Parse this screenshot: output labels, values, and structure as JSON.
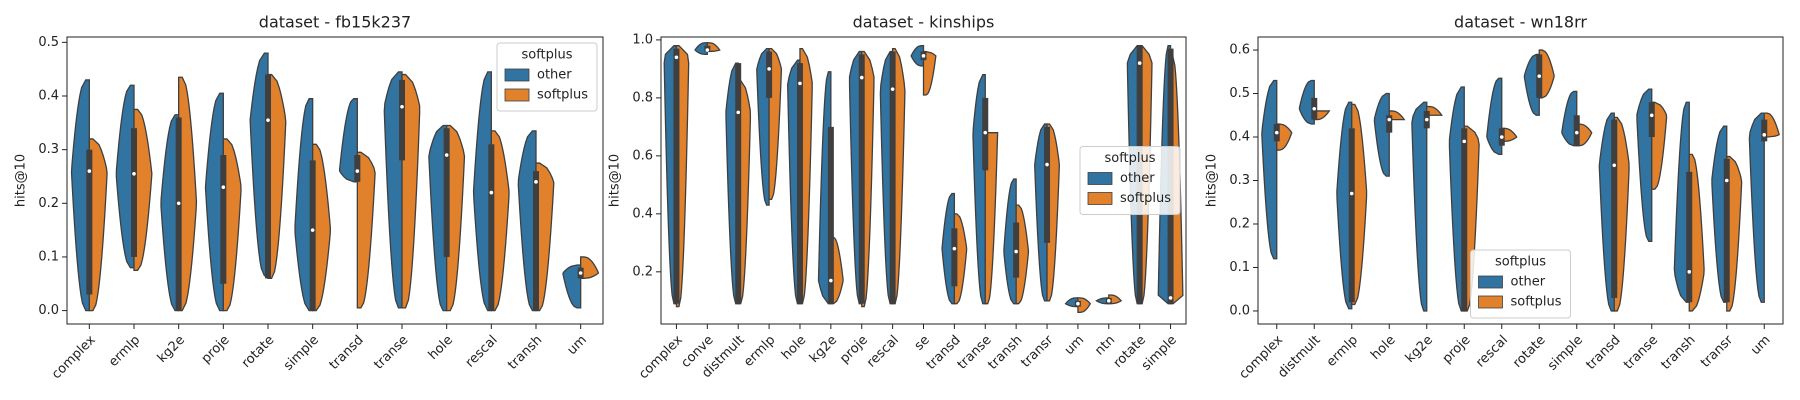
{
  "chart_data": [
    {
      "type": "violin",
      "title": "dataset - fb15k237",
      "ylabel": "hits@10",
      "categories": [
        "complex",
        "ermlp",
        "kg2e",
        "proje",
        "rotate",
        "simple",
        "transd",
        "transe",
        "hole",
        "rescal",
        "transh",
        "um"
      ],
      "series": [
        {
          "name": "other",
          "color": "#3274a1",
          "min": [
            0,
            0.08,
            0,
            0,
            0.065,
            0,
            0.24,
            0.005,
            0,
            0,
            0,
            0.005
          ],
          "max": [
            0.43,
            0.42,
            0.365,
            0.405,
            0.48,
            0.395,
            0.395,
            0.445,
            0.345,
            0.445,
            0.335,
            0.085
          ]
        },
        {
          "name": "softplus",
          "color": "#e1812c",
          "min": [
            0,
            0.075,
            0,
            0,
            0.06,
            0,
            0.005,
            0.005,
            0,
            0,
            0,
            0.06
          ],
          "max": [
            0.32,
            0.375,
            0.435,
            0.32,
            0.44,
            0.31,
            0.295,
            0.44,
            0.345,
            0.335,
            0.275,
            0.1
          ]
        }
      ],
      "median": [
        0.26,
        0.255,
        0.2,
        0.23,
        0.355,
        0.15,
        0.26,
        0.38,
        0.29,
        0.22,
        0.24,
        0.07
      ],
      "q1": [
        0.03,
        0.1,
        0,
        0.05,
        0.06,
        0,
        0.24,
        0.28,
        0.1,
        0,
        0,
        0.06
      ],
      "q3": [
        0.3,
        0.34,
        0.36,
        0.29,
        0.44,
        0.28,
        0.29,
        0.43,
        0.34,
        0.31,
        0.26,
        0.08
      ],
      "ylim": [
        -0.025,
        0.51
      ],
      "yticks": [
        {
          "value": 0,
          "label": "0.0"
        },
        0.1,
        0.2,
        0.3,
        0.4,
        0.5
      ],
      "legend": {
        "title": "softplus",
        "loc": "upper right"
      }
    },
    {
      "type": "violin",
      "title": "dataset - kinships",
      "ylabel": "hits@10",
      "categories": [
        "complex",
        "conve",
        "distmult",
        "ermlp",
        "hole",
        "kg2e",
        "proje",
        "rescal",
        "se",
        "transd",
        "transe",
        "transh",
        "transr",
        "um",
        "ntn",
        "rotate",
        "simple"
      ],
      "series": [
        {
          "name": "other",
          "color": "#3274a1",
          "min": [
            0.09,
            0.95,
            0.09,
            0.43,
            0.09,
            0.09,
            0.09,
            0.09,
            0.91,
            0.09,
            0.09,
            0.09,
            0.1,
            0.08,
            0.09,
            0.09,
            0.09
          ],
          "max": [
            0.98,
            0.99,
            0.92,
            0.97,
            0.93,
            0.89,
            0.96,
            0.96,
            0.98,
            0.47,
            0.88,
            0.52,
            0.71,
            0.11,
            0.11,
            0.98,
            0.98
          ]
        },
        {
          "name": "softplus",
          "color": "#e1812c",
          "min": [
            0.08,
            0.96,
            0.09,
            0.45,
            0.09,
            0.09,
            0.08,
            0.09,
            0.81,
            0.09,
            0.09,
            0.09,
            0.1,
            0.06,
            0.09,
            0.09,
            0.09
          ],
          "max": [
            0.98,
            0.99,
            0.86,
            0.97,
            0.97,
            0.32,
            0.96,
            0.97,
            0.96,
            0.4,
            0.68,
            0.43,
            0.71,
            0.11,
            0.12,
            0.98,
            0.94
          ]
        }
      ],
      "median": [
        0.94,
        0.965,
        0.75,
        0.9,
        0.85,
        0.17,
        0.87,
        0.83,
        0.945,
        0.28,
        0.68,
        0.27,
        0.57,
        0.09,
        0.1,
        0.92,
        0.11
      ],
      "q1": [
        0.09,
        0.96,
        0.09,
        0.8,
        0.09,
        0.09,
        0.09,
        0.09,
        0.93,
        0.15,
        0.55,
        0.18,
        0.3,
        0.08,
        0.09,
        0.09,
        0.09
      ],
      "q3": [
        0.97,
        0.98,
        0.92,
        0.96,
        0.92,
        0.7,
        0.95,
        0.96,
        0.96,
        0.35,
        0.8,
        0.37,
        0.7,
        0.1,
        0.11,
        0.98,
        0.97
      ],
      "ylim": [
        0.02,
        1.01
      ],
      "yticks": [
        0.2,
        0.4,
        0.6,
        0.8,
        {
          "value": 1,
          "label": "1.0"
        }
      ],
      "legend": {
        "title": "softplus",
        "loc": "center right"
      }
    },
    {
      "type": "violin",
      "title": "dataset - wn18rr",
      "ylabel": "hits@10",
      "categories": [
        "complex",
        "distmult",
        "ermlp",
        "hole",
        "kg2e",
        "proje",
        "rescal",
        "rotate",
        "simple",
        "transd",
        "transe",
        "transh",
        "transr",
        "um"
      ],
      "series": [
        {
          "name": "other",
          "color": "#3274a1",
          "min": [
            0.12,
            0.43,
            0.005,
            0.31,
            0,
            0,
            0.36,
            0.45,
            0.38,
            0,
            0.16,
            0.02,
            0.02,
            0.02
          ],
          "max": [
            0.53,
            0.53,
            0.48,
            0.5,
            0.48,
            0.515,
            0.535,
            0.59,
            0.505,
            0.455,
            0.51,
            0.48,
            0.425,
            0.455
          ]
        },
        {
          "name": "softplus",
          "color": "#e1812c",
          "min": [
            0.37,
            0.44,
            0.015,
            0.44,
            0.45,
            0,
            0.39,
            0.49,
            0.38,
            0,
            0.28,
            0,
            0,
            0.4
          ],
          "max": [
            0.43,
            0.46,
            0.475,
            0.46,
            0.47,
            0.425,
            0.42,
            0.6,
            0.43,
            0.445,
            0.48,
            0.36,
            0.355,
            0.455
          ]
        }
      ],
      "median": [
        0.41,
        0.465,
        0.27,
        0.44,
        0.44,
        0.39,
        0.4,
        0.54,
        0.41,
        0.335,
        0.45,
        0.09,
        0.3,
        0.405
      ],
      "q1": [
        0.39,
        0.44,
        0.02,
        0.41,
        0.42,
        0,
        0.38,
        0.49,
        0.38,
        0.03,
        0.4,
        0.02,
        0.02,
        0.39
      ],
      "q3": [
        0.43,
        0.49,
        0.42,
        0.45,
        0.46,
        0.42,
        0.42,
        0.59,
        0.45,
        0.44,
        0.48,
        0.32,
        0.35,
        0.44
      ],
      "ylim": [
        -0.03,
        0.63
      ],
      "yticks": [
        {
          "value": 0,
          "label": "0.0"
        },
        0.1,
        0.2,
        0.3,
        0.4,
        0.5,
        0.6
      ],
      "legend": {
        "title": "softplus",
        "loc": "lower center"
      }
    }
  ]
}
